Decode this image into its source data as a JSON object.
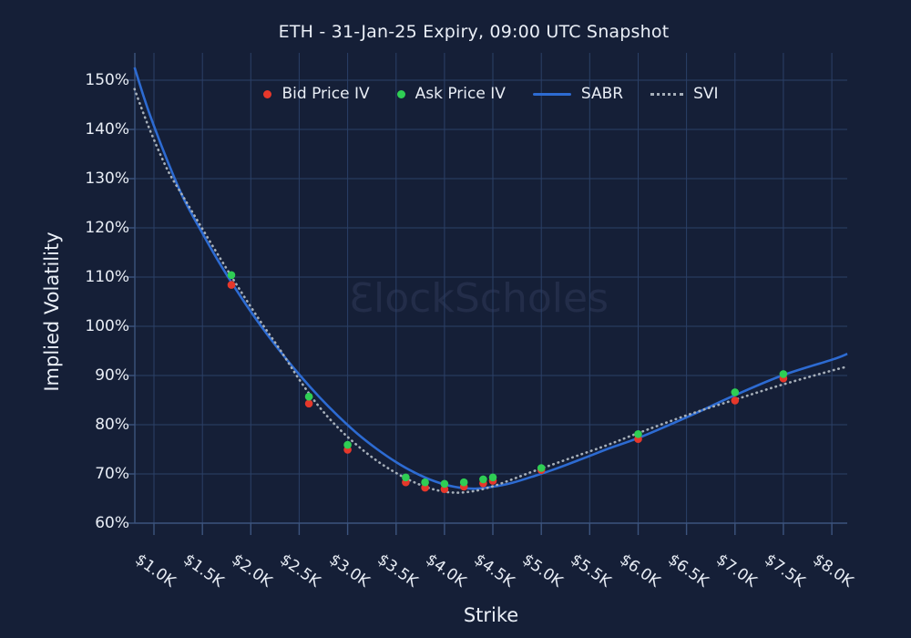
{
  "title": "ETH - 31-Jan-25 Expiry, 09:00 UTC Snapshot",
  "watermark": {
    "logo_glyph": "Ɛ",
    "text": "lockScholes"
  },
  "colors": {
    "background": "#151F37",
    "gridline": "#2B4067",
    "axis": "#3C547E",
    "text": "#E8EDF5",
    "bid": "#E6382B",
    "ask": "#2FCE54",
    "sabr": "#2D6BD2",
    "svi": "#A6AFB9",
    "watermark": "#232D49"
  },
  "chart_data": {
    "type": "line+scatter",
    "title": "ETH - 31-Jan-25 Expiry, 09:00 UTC Snapshot",
    "xlabel": "Strike",
    "ylabel": "Implied Volatility",
    "x_unit": "USD thousands",
    "y_unit": "percent",
    "xlim": [
      0.8,
      8.16
    ],
    "ylim": [
      60,
      155
    ],
    "grid": true,
    "legend_position": "top-center",
    "x_ticks": {
      "values": [
        1.0,
        1.5,
        2.0,
        2.5,
        3.0,
        3.5,
        4.0,
        4.5,
        5.0,
        5.5,
        6.0,
        6.5,
        7.0,
        7.5,
        8.0
      ],
      "labels": [
        "$1.0K",
        "$1.5K",
        "$2.0K",
        "$2.5K",
        "$3.0K",
        "$3.5K",
        "$4.0K",
        "$4.5K",
        "$5.0K",
        "$5.5K",
        "$6.0K",
        "$6.5K",
        "$7.0K",
        "$7.5K",
        "$8.0K"
      ]
    },
    "y_ticks": {
      "values": [
        60,
        70,
        80,
        90,
        100,
        110,
        120,
        130,
        140,
        150
      ],
      "labels": [
        "60%",
        "70%",
        "80%",
        "90%",
        "100%",
        "110%",
        "120%",
        "130%",
        "140%",
        "150%"
      ]
    },
    "series": [
      {
        "name": "Bid Price IV",
        "type": "scatter",
        "color": "#E6382B",
        "points": [
          [
            1.8,
            108.4
          ],
          [
            2.6,
            84.3
          ],
          [
            3.0,
            74.9
          ],
          [
            3.6,
            68.3
          ],
          [
            3.8,
            67.2
          ],
          [
            4.0,
            66.9
          ],
          [
            4.2,
            67.4
          ],
          [
            4.4,
            68.1
          ],
          [
            4.5,
            68.6
          ],
          [
            5.0,
            70.8
          ],
          [
            6.0,
            77.1
          ],
          [
            7.0,
            84.9
          ],
          [
            7.5,
            89.4
          ]
        ]
      },
      {
        "name": "Ask Price IV",
        "type": "scatter",
        "color": "#2FCE54",
        "points": [
          [
            1.8,
            110.4
          ],
          [
            2.6,
            85.7
          ],
          [
            3.0,
            75.9
          ],
          [
            3.6,
            69.3
          ],
          [
            3.8,
            68.3
          ],
          [
            4.0,
            68.0
          ],
          [
            4.2,
            68.3
          ],
          [
            4.4,
            68.9
          ],
          [
            4.5,
            69.3
          ],
          [
            5.0,
            71.2
          ],
          [
            6.0,
            78.1
          ],
          [
            7.0,
            86.6
          ],
          [
            7.5,
            90.3
          ]
        ]
      },
      {
        "name": "SABR",
        "type": "line",
        "style": "solid",
        "color": "#2D6BD2",
        "points": [
          [
            0.8,
            152.6
          ],
          [
            0.9,
            146.3
          ],
          [
            1.0,
            140.7
          ],
          [
            1.15,
            133.1
          ],
          [
            1.3,
            126.2
          ],
          [
            1.5,
            118.9
          ],
          [
            1.7,
            112.1
          ],
          [
            1.9,
            105.9
          ],
          [
            2.1,
            100.2
          ],
          [
            2.3,
            95.0
          ],
          [
            2.5,
            90.2
          ],
          [
            2.7,
            85.8
          ],
          [
            2.9,
            81.8
          ],
          [
            3.1,
            78.2
          ],
          [
            3.3,
            75.1
          ],
          [
            3.5,
            72.4
          ],
          [
            3.7,
            70.2
          ],
          [
            3.9,
            68.5
          ],
          [
            4.1,
            67.4
          ],
          [
            4.3,
            67.0
          ],
          [
            4.5,
            67.4
          ],
          [
            4.7,
            68.2
          ],
          [
            4.9,
            69.4
          ],
          [
            5.1,
            70.7
          ],
          [
            5.4,
            72.9
          ],
          [
            5.7,
            75.2
          ],
          [
            6.0,
            77.3
          ],
          [
            6.5,
            81.5
          ],
          [
            7.0,
            86.0
          ],
          [
            7.5,
            90.1
          ],
          [
            8.0,
            93.2
          ],
          [
            8.16,
            94.4
          ]
        ]
      },
      {
        "name": "SVI",
        "type": "line",
        "style": "dotted",
        "color": "#A6AFB9",
        "points": [
          [
            0.8,
            148.2
          ],
          [
            0.9,
            142.8
          ],
          [
            1.0,
            137.9
          ],
          [
            1.15,
            131.4
          ],
          [
            1.3,
            126.4
          ],
          [
            1.5,
            119.8
          ],
          [
            1.7,
            113.3
          ],
          [
            1.9,
            107.0
          ],
          [
            2.1,
            101.0
          ],
          [
            2.3,
            95.3
          ],
          [
            2.5,
            89.2
          ],
          [
            2.7,
            83.8
          ],
          [
            2.9,
            79.4
          ],
          [
            3.1,
            75.8
          ],
          [
            3.3,
            72.7
          ],
          [
            3.5,
            70.2
          ],
          [
            3.7,
            68.2
          ],
          [
            3.9,
            66.8
          ],
          [
            4.1,
            66.2
          ],
          [
            4.3,
            66.5
          ],
          [
            4.5,
            67.5
          ],
          [
            4.7,
            68.9
          ],
          [
            4.9,
            70.4
          ],
          [
            5.1,
            71.8
          ],
          [
            5.4,
            73.9
          ],
          [
            5.7,
            76.0
          ],
          [
            6.0,
            78.3
          ],
          [
            6.5,
            81.9
          ],
          [
            7.0,
            85.1
          ],
          [
            7.5,
            88.2
          ],
          [
            8.0,
            91.0
          ],
          [
            8.16,
            91.8
          ]
        ]
      }
    ]
  }
}
